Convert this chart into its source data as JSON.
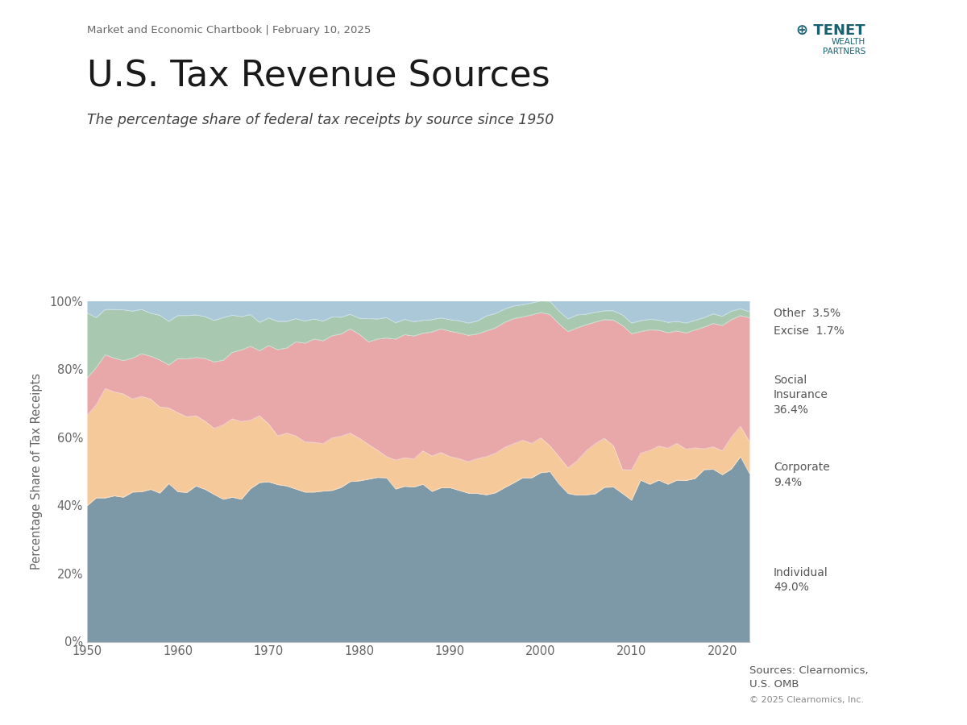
{
  "title": "U.S. Tax Revenue Sources",
  "subtitle": "The percentage share of federal tax receipts by source since 1950",
  "header": "Market and Economic Chartbook | February 10, 2025",
  "source": "Sources: Clearnomics,\nU.S. OMB",
  "copyright": "© 2025 Clearnomics, Inc.",
  "ylabel": "Percentage Share of Tax Receipts",
  "years": [
    1950,
    1951,
    1952,
    1953,
    1954,
    1955,
    1956,
    1957,
    1958,
    1959,
    1960,
    1961,
    1962,
    1963,
    1964,
    1965,
    1966,
    1967,
    1968,
    1969,
    1970,
    1971,
    1972,
    1973,
    1974,
    1975,
    1976,
    1977,
    1978,
    1979,
    1980,
    1981,
    1982,
    1983,
    1984,
    1985,
    1986,
    1987,
    1988,
    1989,
    1990,
    1991,
    1992,
    1993,
    1994,
    1995,
    1996,
    1997,
    1998,
    1999,
    2000,
    2001,
    2002,
    2003,
    2004,
    2005,
    2006,
    2007,
    2008,
    2009,
    2010,
    2011,
    2012,
    2013,
    2014,
    2015,
    2016,
    2017,
    2018,
    2019,
    2020,
    2021,
    2022,
    2023
  ],
  "individual": [
    39.9,
    42.2,
    42.2,
    42.8,
    42.4,
    43.9,
    44.0,
    44.7,
    43.6,
    46.4,
    44.0,
    43.8,
    45.7,
    44.7,
    43.2,
    41.8,
    42.4,
    41.8,
    44.9,
    46.7,
    46.9,
    46.1,
    45.7,
    44.8,
    43.9,
    43.9,
    44.2,
    44.4,
    45.3,
    47.0,
    47.2,
    47.7,
    48.2,
    48.1,
    44.8,
    45.6,
    45.4,
    46.2,
    44.1,
    45.2,
    45.2,
    44.4,
    43.6,
    43.5,
    43.1,
    43.7,
    45.2,
    46.6,
    48.1,
    48.1,
    49.6,
    49.9,
    46.3,
    43.5,
    43.0,
    43.1,
    43.4,
    45.3,
    45.4,
    43.5,
    41.5,
    47.4,
    46.2,
    47.4,
    46.2,
    47.4,
    47.3,
    47.9,
    50.5,
    50.6,
    49.0,
    50.7,
    54.3,
    49.3
  ],
  "corporate": [
    26.5,
    27.3,
    32.1,
    30.5,
    30.3,
    27.3,
    28.0,
    26.5,
    25.3,
    22.2,
    23.2,
    22.2,
    20.6,
    20.0,
    19.4,
    21.8,
    23.0,
    22.8,
    20.1,
    19.6,
    17.0,
    14.3,
    15.5,
    15.6,
    14.7,
    14.6,
    13.9,
    15.4,
    15.0,
    14.2,
    12.5,
    10.2,
    8.0,
    6.2,
    8.5,
    8.4,
    8.2,
    9.8,
    10.4,
    10.4,
    9.1,
    9.3,
    9.2,
    10.2,
    11.2,
    11.6,
    11.8,
    11.5,
    11.0,
    10.1,
    10.2,
    7.6,
    8.0,
    7.5,
    10.1,
    12.9,
    14.7,
    14.4,
    12.1,
    7.0,
    8.9,
    7.9,
    9.9,
    10.0,
    10.6,
    10.8,
    9.2,
    9.0,
    6.1,
    6.6,
    7.0,
    9.3,
    8.9,
    9.4
  ],
  "social_insurance": [
    11.0,
    10.9,
    9.9,
    9.9,
    9.8,
    12.0,
    12.5,
    12.6,
    13.8,
    12.6,
    15.9,
    17.0,
    17.1,
    18.4,
    19.5,
    19.0,
    19.5,
    21.0,
    21.7,
    19.1,
    23.0,
    25.3,
    25.0,
    27.6,
    29.0,
    30.3,
    30.2,
    30.0,
    30.0,
    30.6,
    30.5,
    30.1,
    32.6,
    34.8,
    35.5,
    36.1,
    36.1,
    34.5,
    36.4,
    36.3,
    36.8,
    36.9,
    37.1,
    36.6,
    36.9,
    36.8,
    36.7,
    36.7,
    36.2,
    37.7,
    36.8,
    38.5,
    39.0,
    40.0,
    39.0,
    37.0,
    35.7,
    34.8,
    36.9,
    42.3,
    40.0,
    35.7,
    35.4,
    34.0,
    33.9,
    33.0,
    34.1,
    34.6,
    35.7,
    36.2,
    36.8,
    34.5,
    32.5,
    36.4
  ],
  "excise": [
    19.1,
    14.7,
    13.3,
    14.3,
    14.9,
    13.8,
    13.0,
    12.6,
    13.1,
    12.8,
    12.6,
    12.7,
    12.5,
    12.3,
    12.2,
    12.5,
    10.9,
    9.8,
    9.3,
    8.3,
    8.1,
    8.3,
    7.8,
    6.8,
    6.5,
    5.9,
    5.8,
    5.5,
    4.9,
    4.3,
    4.7,
    6.8,
    5.9,
    6.0,
    4.8,
    4.5,
    4.2,
    3.8,
    3.6,
    3.2,
    3.4,
    3.6,
    3.6,
    3.8,
    4.4,
    4.2,
    3.9,
    3.7,
    3.6,
    3.5,
    3.4,
    3.9,
    3.7,
    3.7,
    3.8,
    3.1,
    2.9,
    2.6,
    2.7,
    3.1,
    3.1,
    3.2,
    3.1,
    3.0,
    3.0,
    2.8,
    2.9,
    2.8,
    2.8,
    2.8,
    2.7,
    2.5,
    2.0,
    1.7
  ],
  "other": [
    3.5,
    4.9,
    2.5,
    2.5,
    2.6,
    3.0,
    2.5,
    3.6,
    4.2,
    6.0,
    4.3,
    4.3,
    4.1,
    4.6,
    5.7,
    4.9,
    4.2,
    4.6,
    4.0,
    6.3,
    5.0,
    6.0,
    6.0,
    5.2,
    5.9,
    5.3,
    5.9,
    4.7,
    4.8,
    3.9,
    5.1,
    5.2,
    5.3,
    4.9,
    6.4,
    5.4,
    6.1,
    5.7,
    5.5,
    5.0,
    5.5,
    5.8,
    6.5,
    5.9,
    4.4,
    3.7,
    2.4,
    1.5,
    1.1,
    0.6,
    0.0,
    0.1,
    3.0,
    5.3,
    4.1,
    3.9,
    3.3,
    2.9,
    2.9,
    4.1,
    6.5,
    5.8,
    5.4,
    5.6,
    6.3,
    6.0,
    6.5,
    5.7,
    4.9,
    3.8,
    4.5,
    3.0,
    2.3,
    3.2
  ],
  "colors": {
    "individual": "#7d99a8",
    "corporate": "#f5c99a",
    "social_insurance": "#e8a8aa",
    "excise": "#a8c8b0",
    "other": "#aac8d8"
  },
  "background_color": "#ffffff",
  "figsize": [
    12,
    9
  ],
  "dpi": 100
}
